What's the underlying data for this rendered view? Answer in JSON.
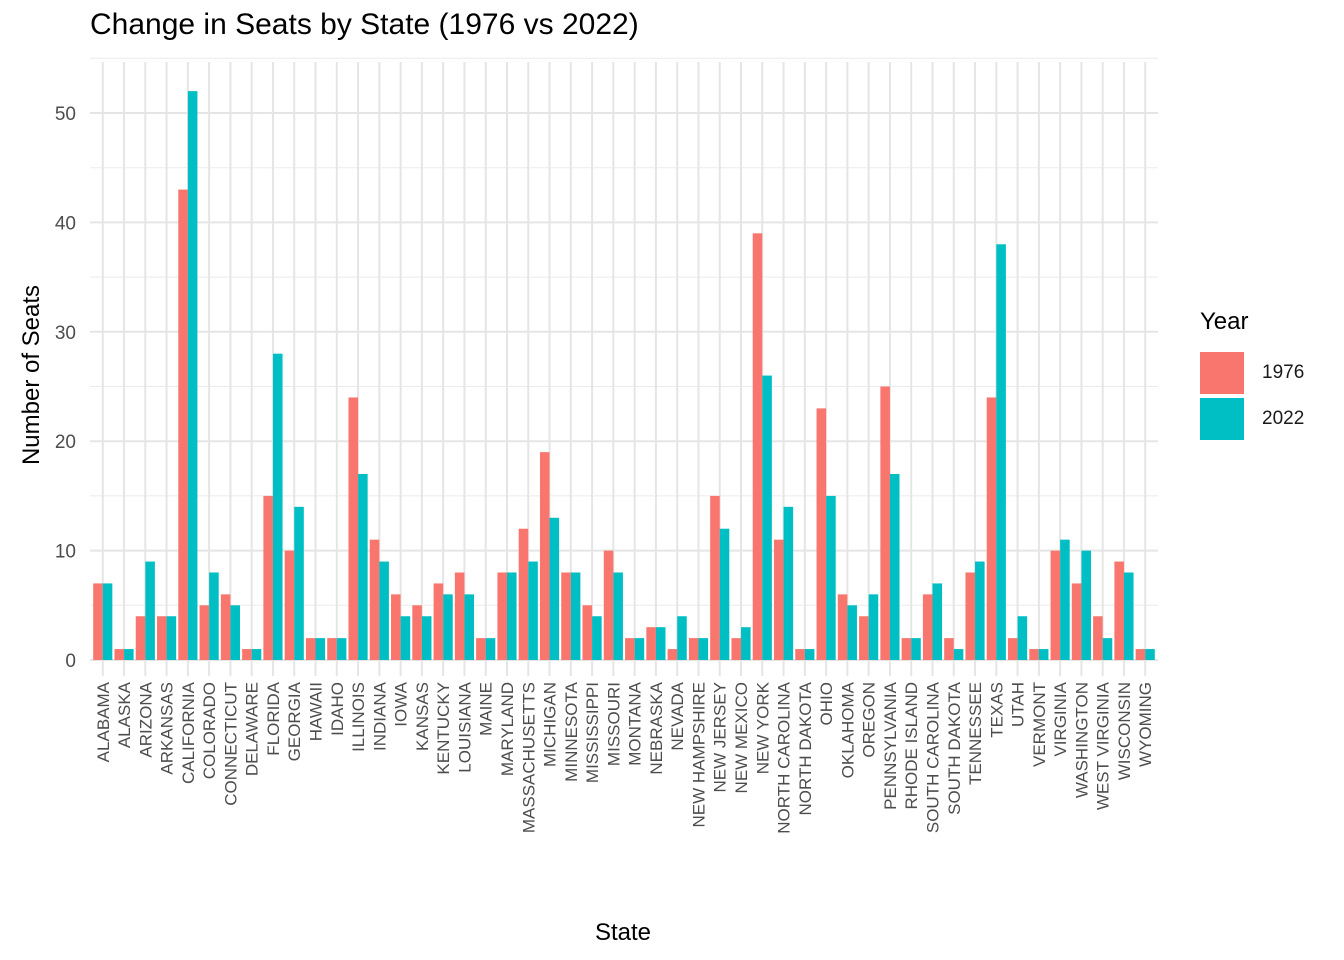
{
  "chart_data": {
    "type": "bar",
    "title": "Change in Seats by State (1976 vs 2022)",
    "xlabel": "State",
    "ylabel": "Number of Seats",
    "ylim": [
      0,
      55
    ],
    "yticks": [
      0,
      10,
      20,
      30,
      40,
      50
    ],
    "grid": true,
    "legend_title": "Year",
    "legend_position": "right",
    "categories": [
      "ALABAMA",
      "ALASKA",
      "ARIZONA",
      "ARKANSAS",
      "CALIFORNIA",
      "COLORADO",
      "CONNECTICUT",
      "DELAWARE",
      "FLORIDA",
      "GEORGIA",
      "HAWAII",
      "IDAHO",
      "ILLINOIS",
      "INDIANA",
      "IOWA",
      "KANSAS",
      "KENTUCKY",
      "LOUISIANA",
      "MAINE",
      "MARYLAND",
      "MASSACHUSETTS",
      "MICHIGAN",
      "MINNESOTA",
      "MISSISSIPPI",
      "MISSOURI",
      "MONTANA",
      "NEBRASKA",
      "NEVADA",
      "NEW HAMPSHIRE",
      "NEW JERSEY",
      "NEW MEXICO",
      "NEW YORK",
      "NORTH CAROLINA",
      "NORTH DAKOTA",
      "OHIO",
      "OKLAHOMA",
      "OREGON",
      "PENNSYLVANIA",
      "RHODE ISLAND",
      "SOUTH CAROLINA",
      "SOUTH DAKOTA",
      "TENNESSEE",
      "TEXAS",
      "UTAH",
      "VERMONT",
      "VIRGINIA",
      "WASHINGTON",
      "WEST VIRGINIA",
      "WISCONSIN",
      "WYOMING"
    ],
    "series": [
      {
        "name": "1976",
        "color": "#F8766D",
        "values": [
          7,
          1,
          4,
          4,
          43,
          5,
          6,
          1,
          15,
          10,
          2,
          2,
          24,
          11,
          6,
          5,
          7,
          8,
          2,
          8,
          12,
          19,
          8,
          5,
          10,
          2,
          3,
          1,
          2,
          15,
          2,
          39,
          11,
          1,
          23,
          6,
          4,
          25,
          2,
          6,
          2,
          8,
          24,
          2,
          1,
          10,
          7,
          4,
          9,
          1
        ]
      },
      {
        "name": "2022",
        "color": "#00BFC4",
        "values": [
          7,
          1,
          9,
          4,
          52,
          8,
          5,
          1,
          28,
          14,
          2,
          2,
          17,
          9,
          4,
          4,
          6,
          6,
          2,
          8,
          9,
          13,
          8,
          4,
          8,
          2,
          3,
          4,
          2,
          12,
          3,
          26,
          14,
          1,
          15,
          5,
          6,
          17,
          2,
          7,
          1,
          9,
          38,
          4,
          1,
          11,
          10,
          2,
          8,
          1
        ]
      }
    ]
  }
}
